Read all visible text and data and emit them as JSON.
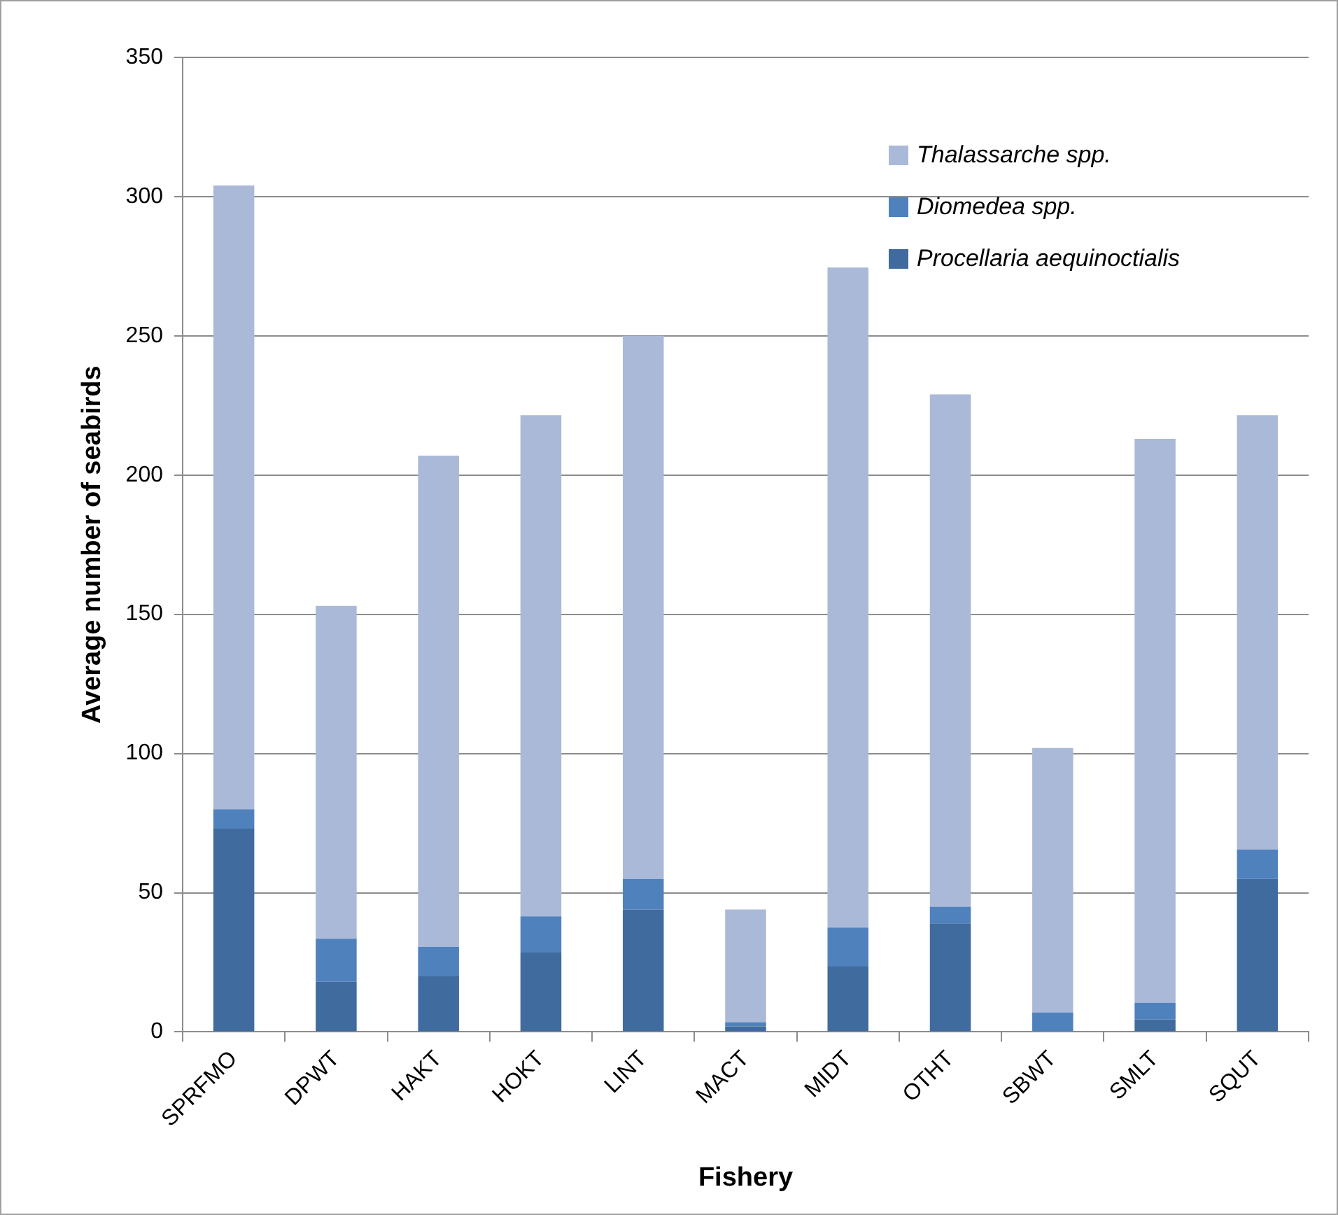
{
  "chart_data": {
    "type": "bar",
    "stacked": true,
    "xlabel": "Fishery",
    "ylabel": "Average number of seabirds",
    "categories": [
      "SPRFMO",
      "DPWT",
      "HAKT",
      "HOKT",
      "LINT",
      "MACT",
      "MIDT",
      "OTHT",
      "SBWT",
      "SMLT",
      "SQUT"
    ],
    "series": [
      {
        "name": "Procellaria aequinoctialis",
        "color": "#3f6b9e",
        "values": [
          73,
          18,
          20,
          28.5,
          44,
          2,
          23.5,
          39,
          0,
          4.5,
          55
        ]
      },
      {
        "name": "Diomedea spp.",
        "color": "#4f81bd",
        "values": [
          7,
          15.5,
          10.5,
          13,
          11,
          1.5,
          14,
          6,
          7,
          6,
          10.5
        ]
      },
      {
        "name": "Thalassarche spp.",
        "color": "#aab9d7",
        "values": [
          224,
          119.5,
          176.5,
          180,
          195,
          40.5,
          237,
          184,
          95,
          202.5,
          156
        ]
      }
    ],
    "ylim": [
      0,
      350
    ],
    "yticks": [
      0,
      50,
      100,
      150,
      200,
      250,
      300,
      350
    ],
    "grid": "y",
    "legend": "top right"
  }
}
